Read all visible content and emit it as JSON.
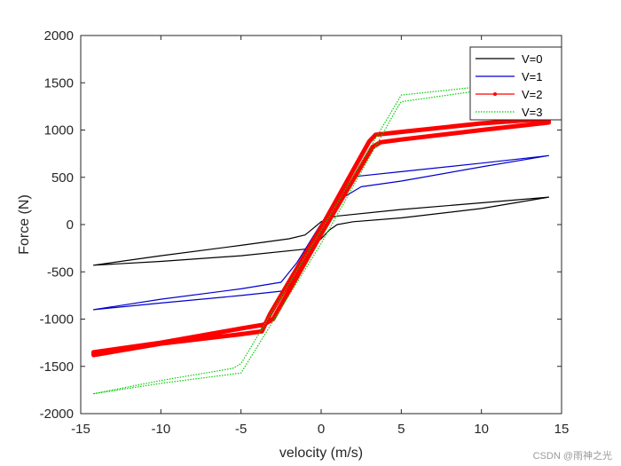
{
  "chart_data": {
    "type": "line",
    "xlabel": "velocity  (m/s)",
    "ylabel": "Force  (N)",
    "xlim": [
      -15,
      15
    ],
    "ylim": [
      -2000,
      2000
    ],
    "xticks": [
      -15,
      -10,
      -5,
      0,
      5,
      10,
      15
    ],
    "yticks": [
      -2000,
      -1500,
      -1000,
      -500,
      0,
      500,
      1000,
      1500,
      2000
    ],
    "xtick_labels": [
      "-15",
      "-10",
      "-5",
      "0",
      "5",
      "10",
      "15"
    ],
    "ytick_labels": [
      "-2000",
      "-1500",
      "-1000",
      "-500",
      "0",
      "500",
      "1000",
      "1500",
      "2000"
    ],
    "grid": false,
    "legend_position": "top-right",
    "series": [
      {
        "name": "V=0",
        "color": "#000000",
        "style": "solid",
        "upper_branch": [
          [
            -14.2,
            -430
          ],
          [
            -10,
            -330
          ],
          [
            -5,
            -220
          ],
          [
            -2,
            -150
          ],
          [
            -1,
            -110
          ],
          [
            -0.5,
            -40
          ],
          [
            0,
            30
          ],
          [
            0.5,
            70
          ],
          [
            1,
            90
          ],
          [
            5,
            160
          ],
          [
            10,
            230
          ],
          [
            14.2,
            290
          ]
        ],
        "lower_branch": [
          [
            14.2,
            290
          ],
          [
            10,
            170
          ],
          [
            5,
            70
          ],
          [
            2,
            30
          ],
          [
            1,
            0
          ],
          [
            0.5,
            -60
          ],
          [
            0,
            -150
          ],
          [
            -0.5,
            -220
          ],
          [
            -1,
            -260
          ],
          [
            -5,
            -330
          ],
          [
            -10,
            -390
          ],
          [
            -14.2,
            -430
          ]
        ]
      },
      {
        "name": "V=1",
        "color": "#0000cc",
        "style": "solid",
        "upper_branch": [
          [
            -14.2,
            -900
          ],
          [
            -10,
            -790
          ],
          [
            -5,
            -680
          ],
          [
            -2.5,
            -610
          ],
          [
            -1.5,
            -400
          ],
          [
            0,
            10
          ],
          [
            1.5,
            380
          ],
          [
            2.2,
            510
          ],
          [
            5,
            560
          ],
          [
            10,
            650
          ],
          [
            14.2,
            730
          ]
        ],
        "lower_branch": [
          [
            14.2,
            730
          ],
          [
            10,
            610
          ],
          [
            5,
            460
          ],
          [
            2.5,
            400
          ],
          [
            1.5,
            300
          ],
          [
            0,
            -80
          ],
          [
            -1.5,
            -470
          ],
          [
            -2.2,
            -700
          ],
          [
            -5,
            -750
          ],
          [
            -10,
            -830
          ],
          [
            -14.2,
            -900
          ]
        ]
      },
      {
        "name": "V=2",
        "color": "#ff0000",
        "style": "thick-marker",
        "upper_branch": [
          [
            -14.2,
            -1350
          ],
          [
            -10,
            -1250
          ],
          [
            -5,
            -1100
          ],
          [
            -3.6,
            -1060
          ],
          [
            -3,
            -1000
          ],
          [
            0,
            -100
          ],
          [
            3.2,
            820
          ],
          [
            3.7,
            870
          ],
          [
            5,
            900
          ],
          [
            10,
            1000
          ],
          [
            14.2,
            1080
          ]
        ],
        "lower_branch": [
          [
            14.2,
            1120
          ],
          [
            10,
            1070
          ],
          [
            5,
            980
          ],
          [
            3.4,
            950
          ],
          [
            3,
            880
          ],
          [
            0,
            -30
          ],
          [
            -3.2,
            -950
          ],
          [
            -3.7,
            -1130
          ],
          [
            -5,
            -1160
          ],
          [
            -10,
            -1260
          ],
          [
            -14.2,
            -1380
          ]
        ]
      },
      {
        "name": "V=3",
        "color": "#00cc00",
        "style": "dotted",
        "upper_branch": [
          [
            -14.2,
            -1790
          ],
          [
            -10,
            -1650
          ],
          [
            -5.5,
            -1520
          ],
          [
            -5,
            -1470
          ],
          [
            0,
            -60
          ],
          [
            5,
            1370
          ],
          [
            10,
            1460
          ],
          [
            12,
            1500
          ]
        ],
        "lower_branch": [
          [
            12,
            1450
          ],
          [
            10,
            1420
          ],
          [
            5,
            1300
          ],
          [
            4.8,
            1250
          ],
          [
            0,
            -200
          ],
          [
            -5,
            -1570
          ],
          [
            -10,
            -1680
          ],
          [
            -14.2,
            -1790
          ]
        ]
      }
    ]
  },
  "watermark": "CSDN @雨神之光"
}
